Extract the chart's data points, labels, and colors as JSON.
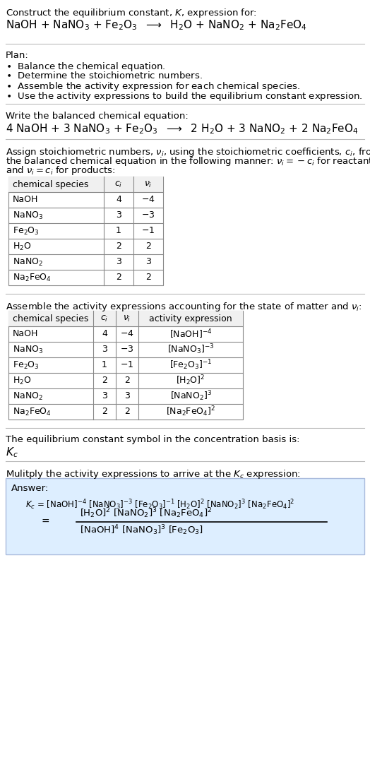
{
  "bg_color": "#ffffff",
  "text_color": "#000000",
  "title_line1": "Construct the equilibrium constant, $K$, expression for:",
  "title_line2": "NaOH + NaNO$_3$ + Fe$_2$O$_3$  $\\longrightarrow$  H$_2$O + NaNO$_2$ + Na$_2$FeO$_4$",
  "plan_header": "Plan:",
  "plan_bullets": [
    "$\\bullet$  Balance the chemical equation.",
    "$\\bullet$  Determine the stoichiometric numbers.",
    "$\\bullet$  Assemble the activity expression for each chemical species.",
    "$\\bullet$  Use the activity expressions to build the equilibrium constant expression."
  ],
  "balanced_header": "Write the balanced chemical equation:",
  "balanced_eq": "4 NaOH + 3 NaNO$_3$ + Fe$_2$O$_3$  $\\longrightarrow$  2 H$_2$O + 3 NaNO$_2$ + 2 Na$_2$FeO$_4$",
  "stoich_lines": [
    "Assign stoichiometric numbers, $\\nu_i$, using the stoichiometric coefficients, $c_i$, from",
    "the balanced chemical equation in the following manner: $\\nu_i = -c_i$ for reactants",
    "and $\\nu_i = c_i$ for products:"
  ],
  "table1_cols": [
    "chemical species",
    "$c_i$",
    "$\\nu_i$"
  ],
  "table1_data": [
    [
      "NaOH",
      "4",
      "$-$4"
    ],
    [
      "NaNO$_3$",
      "3",
      "$-$3"
    ],
    [
      "Fe$_2$O$_3$",
      "1",
      "$-$1"
    ],
    [
      "H$_2$O",
      "2",
      "2"
    ],
    [
      "NaNO$_2$",
      "3",
      "3"
    ],
    [
      "Na$_2$FeO$_4$",
      "2",
      "2"
    ]
  ],
  "activity_header": "Assemble the activity expressions accounting for the state of matter and $\\nu_i$:",
  "table2_cols": [
    "chemical species",
    "$c_i$",
    "$\\nu_i$",
    "activity expression"
  ],
  "table2_data": [
    [
      "NaOH",
      "4",
      "$-$4",
      "[NaOH]$^{-4}$"
    ],
    [
      "NaNO$_3$",
      "3",
      "$-$3",
      "[NaNO$_3$]$^{-3}$"
    ],
    [
      "Fe$_2$O$_3$",
      "1",
      "$-$1",
      "[Fe$_2$O$_3$]$^{-1}$"
    ],
    [
      "H$_2$O",
      "2",
      "2",
      "[H$_2$O]$^2$"
    ],
    [
      "NaNO$_2$",
      "3",
      "3",
      "[NaNO$_2$]$^3$"
    ],
    [
      "Na$_2$FeO$_4$",
      "2",
      "2",
      "[Na$_2$FeO$_4$]$^2$"
    ]
  ],
  "kc_header": "The equilibrium constant symbol in the concentration basis is:",
  "kc_symbol": "$K_c$",
  "multiply_header": "Mulitply the activity expressions to arrive at the $K_c$ expression:",
  "answer_box_color": "#ddeeff",
  "answer_box_edge": "#aabbdd",
  "table_line_color": "#888888",
  "table_header_color": "#f0f0f0"
}
